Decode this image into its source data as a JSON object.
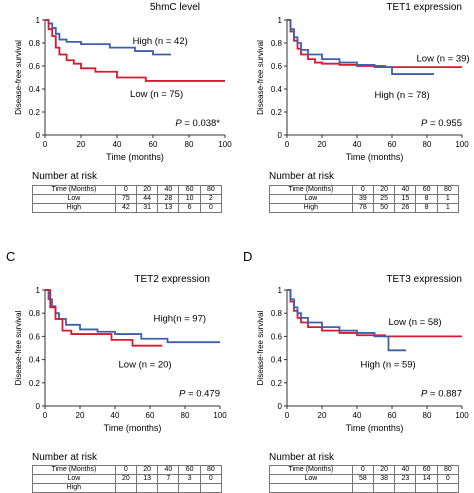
{
  "chart_data": [
    {
      "type": "line",
      "panel_letter": "",
      "title": "5hmC level",
      "xlabel": "Time (months)",
      "ylabel": "Disease-free survival",
      "xlim": [
        0,
        100
      ],
      "ylim": [
        0,
        1
      ],
      "xticks": [
        "0",
        "20",
        "40",
        "60",
        "80",
        "100"
      ],
      "yticks": [
        "0",
        "0.2",
        "0.4",
        "0.6",
        "0.8",
        "1"
      ],
      "pvalue": "0.038*",
      "series": [
        {
          "name": "High (n = 42)",
          "color": "#3f5fae",
          "x": [
            0,
            2,
            4,
            6,
            8,
            12,
            20,
            36,
            50,
            60,
            70
          ],
          "y": [
            1.0,
            0.97,
            0.93,
            0.88,
            0.83,
            0.81,
            0.79,
            0.76,
            0.73,
            0.7,
            0.7
          ]
        },
        {
          "name": "Low (n = 75)",
          "color": "#d8192f",
          "x": [
            0,
            2,
            4,
            6,
            8,
            12,
            16,
            20,
            28,
            40,
            56,
            100
          ],
          "y": [
            1.0,
            0.92,
            0.86,
            0.76,
            0.7,
            0.65,
            0.62,
            0.58,
            0.55,
            0.5,
            0.47,
            0.47
          ]
        }
      ],
      "risk": {
        "header": [
          "Time (Months)",
          "0",
          "20",
          "40",
          "60",
          "80"
        ],
        "rows": [
          [
            "Low",
            "75",
            "44",
            "28",
            "10",
            "2"
          ],
          [
            "High",
            "42",
            "31",
            "13",
            "6",
            "0"
          ]
        ]
      }
    },
    {
      "type": "line",
      "panel_letter": "",
      "title": "TET1 expression",
      "xlabel": "Time (months)",
      "ylabel": "Disease-free survival",
      "xlim": [
        0,
        100
      ],
      "ylim": [
        0,
        1
      ],
      "xticks": [
        "0",
        "20",
        "40",
        "60",
        "80",
        "100"
      ],
      "yticks": [
        "0",
        "0.2",
        "0.4",
        "0.6",
        "0.8",
        "1"
      ],
      "pvalue": "0.955",
      "series": [
        {
          "name": "Low (n = 39)",
          "color": "#d8192f",
          "x": [
            0,
            2,
            4,
            6,
            8,
            12,
            16,
            20,
            30,
            40,
            56,
            100
          ],
          "y": [
            1.0,
            0.9,
            0.82,
            0.75,
            0.7,
            0.66,
            0.63,
            0.62,
            0.61,
            0.6,
            0.59,
            0.59
          ]
        },
        {
          "name": "High (n = 78)",
          "color": "#3f5fae",
          "x": [
            0,
            2,
            4,
            6,
            8,
            12,
            20,
            30,
            40,
            50,
            60,
            84
          ],
          "y": [
            1.0,
            0.92,
            0.85,
            0.8,
            0.74,
            0.7,
            0.66,
            0.63,
            0.61,
            0.59,
            0.53,
            0.53
          ]
        }
      ],
      "risk": {
        "header": [
          "Time (Months)",
          "0",
          "20",
          "40",
          "60",
          "80"
        ],
        "rows": [
          [
            "Low",
            "39",
            "25",
            "15",
            "8",
            "1"
          ],
          [
            "High",
            "78",
            "50",
            "26",
            "8",
            "1"
          ]
        ]
      }
    },
    {
      "type": "line",
      "panel_letter": "C",
      "title": "TET2 expression",
      "xlabel": "Time (months)",
      "ylabel": "Disease-free survival",
      "xlim": [
        0,
        100
      ],
      "ylim": [
        0,
        1
      ],
      "xticks": [
        "0",
        "20",
        "40",
        "60",
        "80",
        "100"
      ],
      "yticks": [
        "0",
        "0.2",
        "0.4",
        "0.6",
        "0.8",
        "1"
      ],
      "pvalue": "0.479",
      "series": [
        {
          "name": "High(n = 97)",
          "color": "#3f5fae",
          "x": [
            0,
            2,
            4,
            6,
            8,
            12,
            20,
            30,
            40,
            55,
            70,
            100
          ],
          "y": [
            1.0,
            0.92,
            0.86,
            0.8,
            0.75,
            0.7,
            0.66,
            0.64,
            0.62,
            0.58,
            0.55,
            0.55
          ]
        },
        {
          "name": "Low (n = 20)",
          "color": "#d8192f",
          "x": [
            0,
            3,
            6,
            10,
            15,
            38,
            50,
            67
          ],
          "y": [
            1.0,
            0.85,
            0.75,
            0.65,
            0.62,
            0.57,
            0.52,
            0.52
          ]
        }
      ],
      "risk": {
        "header": [
          "Time (Months)",
          "0",
          "20",
          "40",
          "60",
          "80"
        ],
        "rows": [
          [
            "Low",
            "20",
            "13",
            "7",
            "3",
            "0"
          ],
          [
            "High",
            "",
            "",
            "",
            "",
            ""
          ]
        ]
      }
    },
    {
      "type": "line",
      "panel_letter": "D",
      "title": "TET3 expression",
      "xlabel": "Time (months)",
      "ylabel": "Disease-free survival",
      "xlim": [
        0,
        100
      ],
      "ylim": [
        0,
        1
      ],
      "xticks": [
        "0",
        "20",
        "40",
        "60",
        "80",
        "100"
      ],
      "yticks": [
        "0",
        "0.2",
        "0.4",
        "0.6",
        "0.8",
        "1"
      ],
      "pvalue": "0.887",
      "series": [
        {
          "name": "Low (n = 58)",
          "color": "#d8192f",
          "x": [
            0,
            2,
            4,
            6,
            8,
            12,
            20,
            30,
            40,
            56,
            100
          ],
          "y": [
            1.0,
            0.9,
            0.82,
            0.76,
            0.72,
            0.68,
            0.65,
            0.63,
            0.61,
            0.6,
            0.6
          ]
        },
        {
          "name": "High (n = 59)",
          "color": "#3f5fae",
          "x": [
            0,
            2,
            4,
            6,
            8,
            12,
            20,
            30,
            40,
            50,
            58,
            68
          ],
          "y": [
            1.0,
            0.92,
            0.85,
            0.8,
            0.76,
            0.72,
            0.68,
            0.65,
            0.63,
            0.6,
            0.48,
            0.48
          ]
        }
      ],
      "risk": {
        "header": [
          "Time (Months)",
          "0",
          "20",
          "40",
          "60",
          "80"
        ],
        "rows": [
          [
            "Low",
            "58",
            "38",
            "23",
            "14",
            "0"
          ],
          [
            "",
            "",
            "",
            "",
            "",
            ""
          ]
        ]
      }
    }
  ],
  "risk_title": "Number at risk",
  "pvalue_prefix": "P = "
}
